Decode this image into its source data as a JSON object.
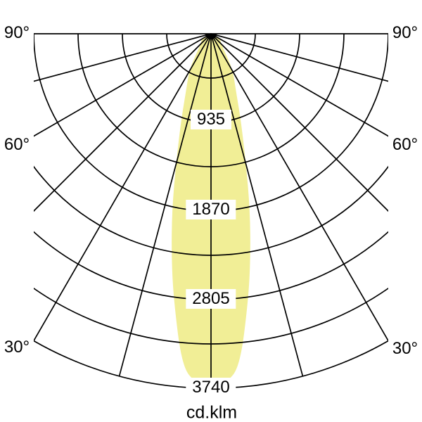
{
  "page": {
    "background": "#ffffff",
    "description": "Photometric polar diagram (luminous intensity distribution curve)"
  },
  "chart_data": {
    "type": "polar",
    "subtype": "luminous-intensity-distribution",
    "unit_label": "cd.klm",
    "angle_ticks": [
      "90°",
      "60°",
      "30°"
    ],
    "radial_ticks": [
      "935",
      "1870",
      "2805",
      "3740"
    ],
    "radial_tick_values": [
      935,
      1870,
      2805,
      3740
    ],
    "radial_max": 3740,
    "ring_count": 8,
    "ray_step_deg": 15,
    "angle_range_deg": [
      -90,
      90
    ],
    "grid": true,
    "legend": "none",
    "colors": {
      "beam_fill": "#f1ee96",
      "line": "#000000",
      "label_bg": "#ffffff",
      "text": "#000000"
    },
    "series": [
      {
        "name": "intensity-curve",
        "symmetric": true,
        "points": [
          {
            "deg": 0,
            "value": 3740
          },
          {
            "deg": 2.5,
            "value": 3690
          },
          {
            "deg": 5,
            "value": 3520
          },
          {
            "deg": 8,
            "value": 2830
          },
          {
            "deg": 10,
            "value": 2400
          },
          {
            "deg": 12.5,
            "value": 1900
          },
          {
            "deg": 15,
            "value": 1430
          },
          {
            "deg": 19,
            "value": 970
          },
          {
            "deg": 24,
            "value": 640
          },
          {
            "deg": 31,
            "value": 445
          },
          {
            "deg": 38,
            "value": 230
          },
          {
            "deg": 45,
            "value": 155
          },
          {
            "deg": 52,
            "value": 130
          },
          {
            "deg": 58,
            "value": 112
          },
          {
            "deg": 62,
            "value": 85
          },
          {
            "deg": 66,
            "value": 0
          }
        ]
      }
    ]
  }
}
